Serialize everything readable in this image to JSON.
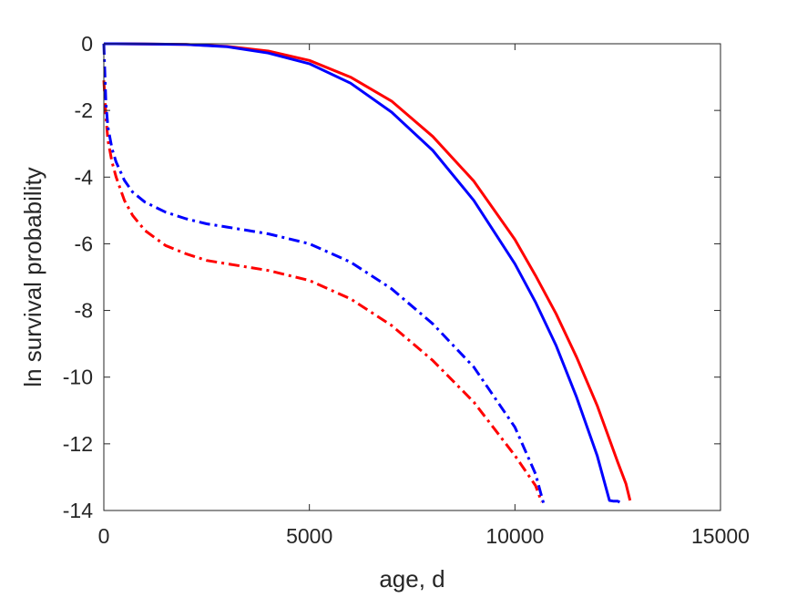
{
  "chart_data": {
    "type": "line",
    "xlabel": "age, d",
    "ylabel": "ln survival probability",
    "xlim": [
      0,
      15000
    ],
    "ylim": [
      -14,
      0
    ],
    "xticks": [
      0,
      5000,
      10000,
      15000
    ],
    "yticks": [
      0,
      -2,
      -4,
      -6,
      -8,
      -10,
      -12,
      -14
    ],
    "xtick_labels": [
      "0",
      "5000",
      "10000",
      "15000"
    ],
    "ytick_labels": [
      "0",
      "-2",
      "-4",
      "-6",
      "-8",
      "-10",
      "-12",
      "-14"
    ],
    "grid": false,
    "box": true,
    "series": [
      {
        "color": "#ff0000",
        "style": "solid",
        "x": [
          0,
          1000,
          2000,
          3000,
          4000,
          5000,
          6000,
          7000,
          8000,
          9000,
          10000,
          10500,
          11000,
          11500,
          12000,
          12500,
          12700,
          12800
        ],
        "y": [
          0,
          -0.005,
          -0.02,
          -0.08,
          -0.22,
          -0.5,
          -1.0,
          -1.72,
          -2.78,
          -4.12,
          -5.87,
          -6.95,
          -8.1,
          -9.4,
          -10.85,
          -12.55,
          -13.2,
          -13.7
        ]
      },
      {
        "color": "#0000ff",
        "style": "solid",
        "x": [
          0,
          1000,
          2000,
          3000,
          4000,
          5000,
          6000,
          7000,
          8000,
          9000,
          10000,
          10500,
          11000,
          11500,
          12000,
          12300,
          12400,
          12500,
          12550
        ],
        "y": [
          0,
          -0.005,
          -0.02,
          -0.09,
          -0.28,
          -0.6,
          -1.18,
          -2.05,
          -3.2,
          -4.7,
          -6.6,
          -7.75,
          -9.05,
          -10.6,
          -12.35,
          -13.7,
          -13.72,
          -13.72,
          -13.75
        ]
      },
      {
        "color": "#ff0000",
        "style": "dashdot",
        "x": [
          0,
          50,
          100,
          200,
          300,
          500,
          700,
          1000,
          1500,
          2000,
          2500,
          3000,
          4000,
          5000,
          6000,
          7000,
          8000,
          9000,
          10000,
          10500,
          10650
        ],
        "y": [
          -1.1,
          -2.2,
          -2.9,
          -3.55,
          -4.0,
          -4.7,
          -5.15,
          -5.6,
          -6.05,
          -6.3,
          -6.5,
          -6.6,
          -6.8,
          -7.1,
          -7.65,
          -8.45,
          -9.5,
          -10.75,
          -12.35,
          -13.25,
          -13.75
        ]
      },
      {
        "color": "#0000ff",
        "style": "dashdot",
        "x": [
          0,
          50,
          100,
          200,
          300,
          500,
          700,
          1000,
          1500,
          2000,
          2500,
          3000,
          4000,
          5000,
          6000,
          7000,
          8000,
          9000,
          10000,
          10500,
          10700
        ],
        "y": [
          0,
          -1.8,
          -2.5,
          -3.15,
          -3.55,
          -4.1,
          -4.45,
          -4.75,
          -5.05,
          -5.25,
          -5.4,
          -5.5,
          -5.7,
          -6.0,
          -6.55,
          -7.35,
          -8.4,
          -9.7,
          -11.5,
          -12.9,
          -13.8
        ]
      }
    ]
  }
}
